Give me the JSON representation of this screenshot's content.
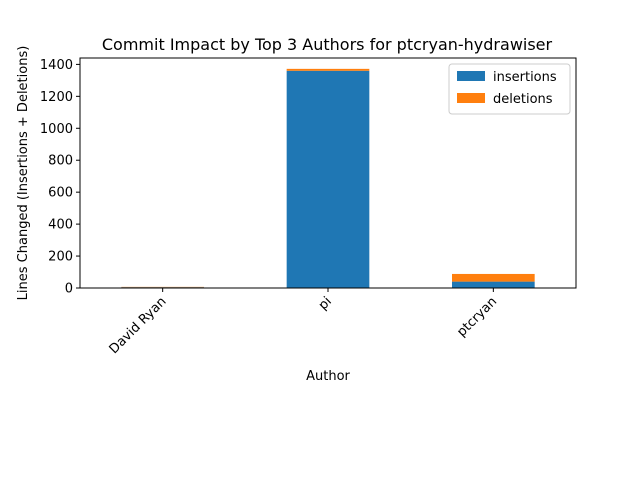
{
  "chart_data": {
    "type": "bar",
    "stacked": true,
    "title": "Commit Impact by Top 3 Authors for ptcryan-hydrawiser",
    "xlabel": "Author",
    "ylabel": "Lines Changed (Insertions + Deletions)",
    "categories": [
      "David Ryan",
      "pi",
      "ptcryan"
    ],
    "series": [
      {
        "name": "insertions",
        "color": "#1f77b4",
        "values": [
          5,
          1360,
          40
        ]
      },
      {
        "name": "deletions",
        "color": "#ff7f0e",
        "values": [
          2,
          12,
          48
        ]
      }
    ],
    "ylim": [
      0,
      1440
    ],
    "yticks": [
      0,
      200,
      400,
      600,
      800,
      1000,
      1200,
      1400
    ],
    "grid": false,
    "legend_position": "top-right"
  }
}
